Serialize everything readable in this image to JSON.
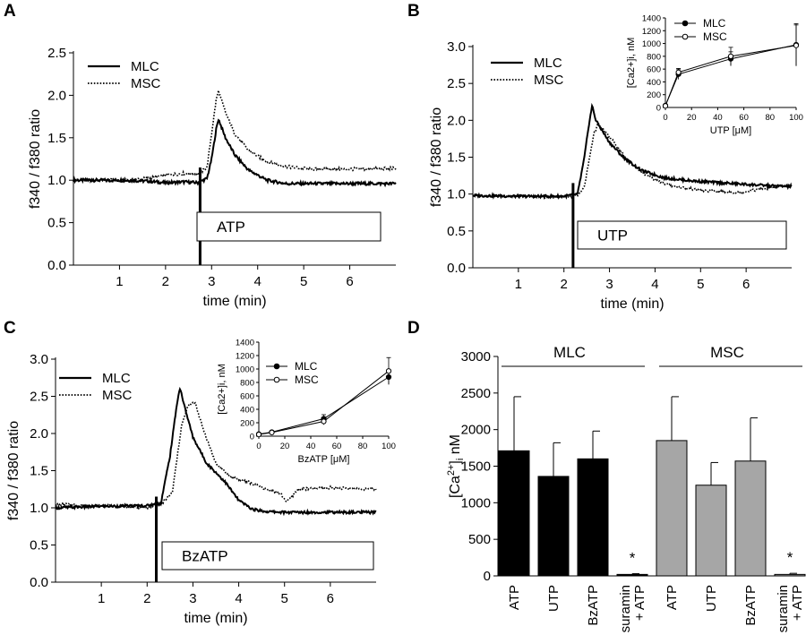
{
  "panel_labels": [
    "A",
    "B",
    "C",
    "D"
  ],
  "chart_data": [
    {
      "panel": "A",
      "type": "line",
      "xlabel": "time (min)",
      "ylabel": "f340 / f380 ratio",
      "xlim": [
        0,
        7
      ],
      "ylim": [
        0,
        2.5
      ],
      "xticks": [
        1,
        2,
        3,
        4,
        5,
        6
      ],
      "yticks": [
        0.0,
        0.5,
        1.0,
        1.5,
        2.0,
        2.5
      ],
      "agonist_label": "ATP",
      "addition_time": 2.75,
      "series": [
        {
          "name": "MLC",
          "style": "solid",
          "x": [
            0,
            1,
            1.6,
            2,
            2.4,
            2.7,
            2.9,
            3.0,
            3.1,
            3.15,
            3.3,
            3.5,
            3.8,
            4.2,
            4.6,
            5.2,
            6,
            7
          ],
          "y": [
            1.0,
            1.0,
            0.99,
            0.97,
            0.98,
            0.97,
            1.02,
            1.25,
            1.6,
            1.72,
            1.5,
            1.3,
            1.12,
            1.0,
            0.96,
            0.96,
            0.96,
            0.96
          ]
        },
        {
          "name": "MSC",
          "style": "dotted",
          "x": [
            0,
            1,
            1.6,
            2,
            2.4,
            2.7,
            2.9,
            3.0,
            3.1,
            3.15,
            3.3,
            3.5,
            3.8,
            4.2,
            4.6,
            5.2,
            6,
            7
          ],
          "y": [
            1.0,
            1.0,
            1.02,
            1.06,
            1.08,
            1.07,
            1.15,
            1.55,
            1.95,
            2.05,
            1.8,
            1.55,
            1.35,
            1.22,
            1.16,
            1.13,
            1.13,
            1.14
          ]
        }
      ]
    },
    {
      "panel": "B",
      "type": "line",
      "xlabel": "time (min)",
      "ylabel": "f340 / f380 ratio",
      "xlim": [
        0,
        7
      ],
      "ylim": [
        0,
        3.0
      ],
      "xticks": [
        1,
        2,
        3,
        4,
        5,
        6
      ],
      "yticks": [
        0.0,
        0.5,
        1.0,
        1.5,
        2.0,
        2.5,
        3.0
      ],
      "agonist_label": "UTP",
      "addition_time": 2.2,
      "series": [
        {
          "name": "MLC",
          "style": "solid",
          "x": [
            0,
            1,
            2,
            2.3,
            2.45,
            2.55,
            2.62,
            2.7,
            2.8,
            3.0,
            3.3,
            3.7,
            4.2,
            4.8,
            5.5,
            6.3,
            7
          ],
          "y": [
            0.98,
            0.97,
            0.97,
            1.0,
            1.5,
            1.95,
            2.2,
            2.0,
            1.9,
            1.7,
            1.5,
            1.32,
            1.22,
            1.18,
            1.15,
            1.12,
            1.1
          ]
        },
        {
          "name": "MSC",
          "style": "dotted",
          "x": [
            0,
            1,
            2,
            2.3,
            2.45,
            2.55,
            2.65,
            2.75,
            2.9,
            3.1,
            3.4,
            3.8,
            4.3,
            5.0,
            5.8,
            6.5,
            7
          ],
          "y": [
            0.98,
            0.97,
            0.96,
            0.98,
            1.1,
            1.45,
            1.8,
            1.95,
            1.85,
            1.7,
            1.45,
            1.25,
            1.12,
            1.05,
            1.02,
            1.08,
            1.12
          ]
        }
      ],
      "inset": {
        "type": "scatter",
        "xlabel": "UTP [μM]",
        "ylabel": "[Ca2+]i, nM",
        "xlim": [
          0,
          100
        ],
        "ylim": [
          0,
          1400
        ],
        "xticks": [
          0,
          20,
          40,
          60,
          80,
          100
        ],
        "yticks": [
          0,
          200,
          400,
          600,
          800,
          1000,
          1200,
          1400
        ],
        "series": [
          {
            "name": "MLC",
            "marker": "filled",
            "x": [
              0,
              10,
              50,
              100
            ],
            "y": [
              30,
              520,
              760,
              980
            ],
            "err": [
              20,
              80,
              110,
              330
            ]
          },
          {
            "name": "MSC",
            "marker": "open",
            "x": [
              0,
              10,
              50,
              100
            ],
            "y": [
              25,
              550,
              800,
              970
            ],
            "err": [
              15,
              60,
              140,
              320
            ]
          }
        ]
      }
    },
    {
      "panel": "C",
      "type": "line",
      "xlabel": "time (min)",
      "ylabel": "f340 / f380 ratio",
      "xlim": [
        0,
        7
      ],
      "ylim": [
        0,
        3.0
      ],
      "xticks": [
        1,
        2,
        3,
        4,
        5,
        6
      ],
      "yticks": [
        0.0,
        0.5,
        1.0,
        1.5,
        2.0,
        2.5,
        3.0
      ],
      "agonist_label": "BzATP",
      "addition_time": 2.2,
      "series": [
        {
          "name": "MLC",
          "style": "solid",
          "x": [
            0,
            1,
            2,
            2.3,
            2.5,
            2.65,
            2.72,
            2.8,
            3.0,
            3.3,
            3.7,
            4.0,
            4.3,
            4.6,
            5.0,
            6,
            7
          ],
          "y": [
            1.0,
            1.02,
            1.03,
            1.06,
            1.7,
            2.4,
            2.62,
            2.4,
            1.95,
            1.6,
            1.35,
            1.1,
            0.98,
            0.95,
            0.94,
            0.94,
            0.94
          ]
        },
        {
          "name": "MSC",
          "style": "dotted",
          "x": [
            0,
            1,
            2,
            2.3,
            2.55,
            2.75,
            2.9,
            3.05,
            3.2,
            3.5,
            3.8,
            4.2,
            4.6,
            4.9,
            5.05,
            5.3,
            6,
            7
          ],
          "y": [
            1.05,
            1.03,
            1.0,
            1.05,
            1.2,
            2.1,
            2.38,
            2.42,
            2.1,
            1.6,
            1.42,
            1.35,
            1.25,
            1.2,
            1.08,
            1.25,
            1.27,
            1.25
          ]
        }
      ],
      "inset": {
        "type": "scatter",
        "xlabel": "BzATP [μM]",
        "ylabel": "[Ca2+]i, nM",
        "xlim": [
          0,
          100
        ],
        "ylim": [
          0,
          1400
        ],
        "xticks": [
          0,
          20,
          40,
          60,
          80,
          100
        ],
        "yticks": [
          0,
          200,
          400,
          600,
          800,
          1000,
          1200,
          1400
        ],
        "series": [
          {
            "name": "MLC",
            "marker": "filled",
            "x": [
              0,
              10,
              50,
              100
            ],
            "y": [
              30,
              60,
              260,
              880
            ],
            "err": [
              15,
              20,
              60,
              110
            ]
          },
          {
            "name": "MSC",
            "marker": "open",
            "x": [
              0,
              10,
              50,
              100
            ],
            "y": [
              25,
              55,
              220,
              970
            ],
            "err": [
              15,
              20,
              50,
              200
            ]
          }
        ]
      }
    },
    {
      "panel": "D",
      "type": "bar",
      "ylabel": "[Ca2+]i nM",
      "ylim": [
        0,
        3000
      ],
      "yticks": [
        0,
        500,
        1000,
        1500,
        2000,
        2500,
        3000
      ],
      "groups": [
        {
          "name": "MLC",
          "color": "#000000",
          "categories": [
            "ATP",
            "UTP",
            "BzATP",
            "suramin\n+ ATP"
          ],
          "values": [
            1710,
            1360,
            1600,
            20
          ],
          "errors": [
            740,
            460,
            380,
            10
          ],
          "significant": [
            false,
            false,
            false,
            true
          ]
        },
        {
          "name": "MSC",
          "color": "#a6a6a6",
          "categories": [
            "ATP",
            "UTP",
            "BzATP",
            "suramin\n+ ATP"
          ],
          "values": [
            1850,
            1240,
            1570,
            20
          ],
          "errors": [
            600,
            310,
            590,
            15
          ],
          "significant": [
            false,
            false,
            false,
            true
          ]
        }
      ],
      "significance_marker": "*"
    }
  ]
}
